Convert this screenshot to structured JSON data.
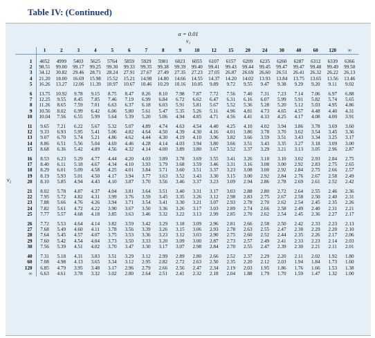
{
  "title": "Table IV: (Continued)",
  "alpha_label": "α = 0.01",
  "nu1_label": "ν₁",
  "nu2_label": "ν₂",
  "columns": [
    "1",
    "2",
    "3",
    "4",
    "5",
    "6",
    "7",
    "8",
    "9",
    "10",
    "12",
    "15",
    "20",
    "24",
    "30",
    "40",
    "60",
    "120",
    "∞"
  ],
  "groups": [
    [
      {
        "label": "1",
        "values": [
          "4052",
          "4999",
          "5403",
          "5625",
          "5764",
          "5859",
          "5929",
          "5981",
          "6023",
          "6055",
          "6107",
          "6157",
          "6209",
          "6235",
          "6260",
          "6287",
          "6312",
          "6339",
          "6366"
        ]
      },
      {
        "label": "2",
        "values": [
          "98.51",
          "99.00",
          "99.17",
          "99.25",
          "99.30",
          "99.33",
          "99.35",
          "99.38",
          "99.39",
          "99.40",
          "99.41",
          "99.43",
          "99.44",
          "99.45",
          "99.47",
          "99.47",
          "99.48",
          "99.49",
          "99.50"
        ]
      },
      {
        "label": "3",
        "values": [
          "34.12",
          "30.82",
          "29.46",
          "28.71",
          "28.24",
          "27.91",
          "27.67",
          "27.49",
          "27.35",
          "27.23",
          "27.05",
          "26.87",
          "26.69",
          "26.60",
          "26.51",
          "26.41",
          "26.32",
          "26.22",
          "26.13"
        ]
      },
      {
        "label": "4",
        "values": [
          "21.20",
          "18.00",
          "16.69",
          "15.98",
          "15.52",
          "15.21",
          "14.98",
          "14.80",
          "14.66",
          "14.55",
          "14.37",
          "14.20",
          "14.02",
          "13.93",
          "13.84",
          "13.75",
          "13.65",
          "13.56",
          "13.46"
        ]
      },
      {
        "label": "5",
        "values": [
          "16.26",
          "13.27",
          "12.06",
          "11.39",
          "10.97",
          "10.67",
          "10.46",
          "10.29",
          "10.16",
          "10.05",
          "9.89",
          "9.72",
          "9.55",
          "9.47",
          "9.38",
          "9.29",
          "9.20",
          "9.11",
          "9.02"
        ]
      }
    ],
    [
      {
        "label": "6",
        "values": [
          "13.75",
          "10.92",
          "9.78",
          "9.15",
          "8.75",
          "8.47",
          "8.26",
          "8.10",
          "7.98",
          "7.87",
          "7.72",
          "7.56",
          "7.40",
          "7.31",
          "7.23",
          "7.14",
          "7.06",
          "6.97",
          "6.88"
        ]
      },
      {
        "label": "7",
        "values": [
          "12.25",
          "9.55",
          "8.45",
          "7.85",
          "7.46",
          "7.19",
          "6.99",
          "6.84",
          "6.72",
          "6.62",
          "6.47",
          "6.31",
          "6.16",
          "6.07",
          "5.99",
          "5.91",
          "5.82",
          "5.74",
          "5.65"
        ]
      },
      {
        "label": "8",
        "values": [
          "11.26",
          "8.65",
          "7.59",
          "7.01",
          "6.63",
          "6.37",
          "6.18",
          "6.03",
          "5.91",
          "5.81",
          "5.67",
          "5.52",
          "5.36",
          "5.28",
          "5.20",
          "5.12",
          "5.03",
          "4.95",
          "4.86"
        ]
      },
      {
        "label": "9",
        "values": [
          "10.56",
          "8.02",
          "6.99",
          "6.42",
          "6.06",
          "5.80",
          "5.61",
          "5.47",
          "5.35",
          "5.26",
          "5.11",
          "4.96",
          "4.81",
          "4.73",
          "4.65",
          "4.57",
          "4.48",
          "4.40",
          "4.31"
        ]
      },
      {
        "label": "10",
        "values": [
          "10.04",
          "7.56",
          "6.55",
          "5.99",
          "5.64",
          "5.39",
          "5.20",
          "5.06",
          "4.94",
          "4.85",
          "4.71",
          "4.56",
          "4.41",
          "4.33",
          "4.25",
          "4.17",
          "4.08",
          "4.00",
          "3.91"
        ]
      }
    ],
    [
      {
        "label": "11",
        "values": [
          "9.65",
          "7.21",
          "6.22",
          "5.67",
          "5.32",
          "5.07",
          "4.89",
          "4.74",
          "4.63",
          "4.54",
          "4.40",
          "4.25",
          "4.10",
          "4.02",
          "3.94",
          "3.86",
          "3.78",
          "3.69",
          "3.60"
        ]
      },
      {
        "label": "12",
        "values": [
          "9.33",
          "6.93",
          "5.95",
          "5.41",
          "5.06",
          "4.82",
          "4.64",
          "4.50",
          "4.39",
          "4.30",
          "4.16",
          "4.01",
          "3.86",
          "3.78",
          "3.70",
          "3.62",
          "3.54",
          "3.45",
          "3.36"
        ]
      },
      {
        "label": "13",
        "values": [
          "9.07",
          "6.70",
          "5.74",
          "5.21",
          "4.86",
          "4.62",
          "4.44",
          "4.30",
          "4.19",
          "4.10",
          "3.96",
          "3.82",
          "3.66",
          "3.59",
          "3.51",
          "3.43",
          "3.34",
          "3.25",
          "3.17"
        ]
      },
      {
        "label": "14",
        "values": [
          "8.86",
          "6.51",
          "5.56",
          "5.04",
          "4.69",
          "4.46",
          "4.28",
          "4.14",
          "4.03",
          "3.94",
          "3.80",
          "3.66",
          "3.51",
          "3.43",
          "3.35",
          "3.27",
          "3.18",
          "3.09",
          "3.00"
        ]
      },
      {
        "label": "15",
        "values": [
          "8.68",
          "6.36",
          "5.42",
          "4.89",
          "4.56",
          "4.32",
          "4.14",
          "4.00",
          "3.89",
          "3.80",
          "3.67",
          "3.52",
          "3.37",
          "3.29",
          "3.21",
          "3.13",
          "3.05",
          "2.96",
          "2.87"
        ]
      }
    ],
    [
      {
        "label": "16",
        "values": [
          "8.53",
          "6.23",
          "5.29",
          "4.77",
          "4.44",
          "4.20",
          "4.03",
          "3.89",
          "3.78",
          "3.69",
          "3.55",
          "3.41",
          "3.26",
          "3.18",
          "3.10",
          "3.02",
          "2.93",
          "2.84",
          "2.75"
        ]
      },
      {
        "label": "17",
        "values": [
          "8.40",
          "6.11",
          "5.18",
          "4.67",
          "4.34",
          "4.10",
          "3.93",
          "3.79",
          "3.68",
          "3.59",
          "3.46",
          "3.31",
          "3.16",
          "3.08",
          "3.00",
          "2.92",
          "2.83",
          "2.75",
          "2.65"
        ]
      },
      {
        "label": "18",
        "values": [
          "8.29",
          "6.01",
          "5.09",
          "4.58",
          "4.25",
          "4.01",
          "3.84",
          "3.71",
          "3.60",
          "3.51",
          "3.37",
          "3.23",
          "3.08",
          "3.00",
          "2.92",
          "2.84",
          "2.75",
          "2.66",
          "2.57"
        ]
      },
      {
        "label": "19",
        "values": [
          "8.19",
          "5.93",
          "5.01",
          "4.50",
          "4.17",
          "3.94",
          "3.77",
          "3.63",
          "3.52",
          "3.43",
          "3.30",
          "3.15",
          "3.00",
          "2.92",
          "2.84",
          "2.76",
          "2.67",
          "2.58",
          "2.49"
        ]
      },
      {
        "label": "20",
        "values": [
          "8.10",
          "5.85",
          "4.94",
          "4.43",
          "4.10",
          "3.87",
          "3.70",
          "3.56",
          "3.46",
          "3.37",
          "3.23",
          "3.09",
          "2.94",
          "2.86",
          "2.78",
          "2.69",
          "2.61",
          "2.52",
          "2.42"
        ]
      }
    ],
    [
      {
        "label": "21",
        "values": [
          "8.02",
          "5.78",
          "4.87",
          "4.37",
          "4.04",
          "3.81",
          "3.64",
          "3.51",
          "3.40",
          "3.31",
          "3.17",
          "3.03",
          "2.88",
          "2.80",
          "2.72",
          "2.64",
          "2.55",
          "2.46",
          "2.36"
        ]
      },
      {
        "label": "22",
        "values": [
          "7.95",
          "5.72",
          "4.82",
          "4.31",
          "3.99",
          "3.76",
          "3.59",
          "3.45",
          "3.35",
          "3.26",
          "3.12",
          "2.98",
          "2.83",
          "2.75",
          "2.67",
          "2.58",
          "2.50",
          "2.40",
          "2.31"
        ]
      },
      {
        "label": "23",
        "values": [
          "7.88",
          "5.66",
          "4.76",
          "4.26",
          "3.94",
          "3.71",
          "3.54",
          "3.41",
          "3.30",
          "3.21",
          "3.07",
          "2.93",
          "2.78",
          "2.70",
          "2.62",
          "2.54",
          "2.45",
          "2.35",
          "2.26"
        ]
      },
      {
        "label": "24",
        "values": [
          "7.82",
          "5.61",
          "4.72",
          "4.22",
          "3.90",
          "3.67",
          "3.50",
          "3.36",
          "3.26",
          "3.17",
          "3.03",
          "2.89",
          "2.74",
          "2.66",
          "2.58",
          "2.49",
          "2.40",
          "2.31",
          "2.21"
        ]
      },
      {
        "label": "25",
        "values": [
          "7.77",
          "5.57",
          "4.68",
          "4.18",
          "3.85",
          "3.63",
          "3.46",
          "3.32",
          "3.22",
          "3.13",
          "2.99",
          "2.85",
          "2.70",
          "2.62",
          "2.54",
          "2.45",
          "2.36",
          "2.27",
          "2.17"
        ]
      }
    ],
    [
      {
        "label": "26",
        "values": [
          "7.72",
          "5.53",
          "4.64",
          "4.14",
          "3.82",
          "3.59",
          "3.42",
          "3.29",
          "3.18",
          "3.09",
          "2.96",
          "2.81",
          "2.66",
          "2.58",
          "2.50",
          "2.42",
          "2.33",
          "2.23",
          "2.13"
        ]
      },
      {
        "label": "27",
        "values": [
          "7.68",
          "5.49",
          "4.60",
          "4.11",
          "3.78",
          "3.56",
          "3.39",
          "3.26",
          "3.15",
          "3.06",
          "2.93",
          "2.78",
          "2.63",
          "2.55",
          "2.47",
          "2.38",
          "2.29",
          "2.20",
          "2.10"
        ]
      },
      {
        "label": "28",
        "values": [
          "7.64",
          "5.45",
          "4.57",
          "4.07",
          "3.75",
          "3.53",
          "3.36",
          "3.23",
          "3.12",
          "3.03",
          "2.90",
          "2.75",
          "2.60",
          "2.52",
          "2.44",
          "2.35",
          "2.26",
          "2.17",
          "2.06"
        ]
      },
      {
        "label": "29",
        "values": [
          "7.60",
          "5.42",
          "4.54",
          "4.04",
          "3.73",
          "3.50",
          "3.33",
          "3.20",
          "3.09",
          "3.00",
          "2.87",
          "2.73",
          "2.57",
          "2.49",
          "2.41",
          "2.33",
          "2.23",
          "2.14",
          "2.03"
        ]
      },
      {
        "label": "30",
        "values": [
          "7.56",
          "5.39",
          "4.51",
          "4.02",
          "3.70",
          "3.47",
          "3.30",
          "3.17",
          "3.07",
          "2.98",
          "2.84",
          "2.70",
          "2.55",
          "2.47",
          "2.39",
          "2.30",
          "2.21",
          "2.11",
          "2.01"
        ]
      }
    ],
    [
      {
        "label": "40",
        "values": [
          "7.31",
          "5.18",
          "4.31",
          "3.83",
          "3.51",
          "3.29",
          "3.12",
          "2.99",
          "2.89",
          "2.80",
          "2.66",
          "2.52",
          "2.37",
          "2.29",
          "2.20",
          "2.11",
          "2.02",
          "1.92",
          "1.80"
        ]
      },
      {
        "label": "60",
        "values": [
          "7.08",
          "4.98",
          "4.13",
          "3.65",
          "3.34",
          "3.12",
          "2.95",
          "2.82",
          "2.72",
          "2.63",
          "2.50",
          "2.35",
          "2.20",
          "2.12",
          "2.03",
          "1.94",
          "1.84",
          "1.73",
          "1.60"
        ]
      },
      {
        "label": "120",
        "values": [
          "6.85",
          "4.79",
          "3.95",
          "3.48",
          "3.17",
          "2.96",
          "2.79",
          "2.66",
          "2.56",
          "2.47",
          "2.34",
          "2.19",
          "2.03",
          "1.95",
          "1.86",
          "1.76",
          "1.66",
          "1.53",
          "1.38"
        ]
      },
      {
        "label": "∞",
        "values": [
          "6.63",
          "4.61",
          "3.78",
          "3.32",
          "3.02",
          "2.80",
          "2.64",
          "2.51",
          "2.41",
          "2.32",
          "2.18",
          "2.04",
          "1.88",
          "1.79",
          "1.70",
          "1.59",
          "1.47",
          "1.32",
          "1.00"
        ]
      }
    ]
  ]
}
